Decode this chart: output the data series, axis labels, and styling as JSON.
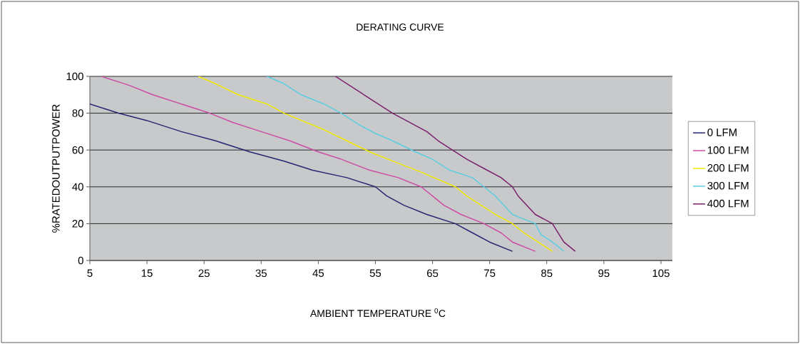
{
  "chart_data": {
    "type": "line",
    "title": "DERATING CURVE",
    "xlabel": "AMBIENT TEMPERATURE $^{0}$C",
    "ylabel": "%RATEDOUTPUTPOWER",
    "xlim": [
      5,
      107
    ],
    "xticks": [
      5,
      15,
      25,
      35,
      45,
      55,
      65,
      75,
      85,
      95,
      105
    ],
    "ylim": [
      0,
      100
    ],
    "yticks": [
      0,
      20,
      40,
      60,
      80,
      100
    ],
    "grid": "y",
    "legend": "right",
    "marker": "none",
    "line_style": "solid",
    "series": [
      {
        "name": "0 LFM",
        "color": "#262673",
        "x": [
          5,
          10,
          15,
          21,
          27,
          33,
          39,
          44,
          50,
          55,
          57,
          60,
          64,
          69,
          72,
          75,
          79
        ],
        "values": [
          85,
          80,
          76,
          70,
          65,
          59,
          54,
          49,
          45,
          40,
          35,
          30,
          25,
          20,
          15,
          10,
          5
        ]
      },
      {
        "name": "100 LFM",
        "color": "#cc4ea4",
        "x": [
          7,
          12,
          16,
          21,
          26,
          30,
          35,
          40,
          45,
          49,
          54,
          59,
          63,
          65,
          67,
          70,
          74,
          77,
          79,
          83
        ],
        "values": [
          100,
          95,
          90,
          85,
          80,
          75,
          70,
          65,
          59,
          55,
          49,
          45,
          40,
          35,
          30,
          25,
          20,
          15,
          10,
          5
        ]
      },
      {
        "name": "200 LFM",
        "color": "#f2ea00",
        "x": [
          24,
          27,
          31,
          36,
          39,
          46,
          50,
          54,
          58,
          63,
          69,
          71,
          74,
          76,
          79,
          81,
          83,
          86
        ],
        "values": [
          100,
          96,
          90,
          85,
          80,
          71,
          65,
          59,
          54,
          48,
          40,
          35,
          29,
          25,
          20,
          15,
          11,
          5
        ]
      },
      {
        "name": "300 LFM",
        "color": "#5bcde0",
        "x": [
          36,
          39,
          42,
          46,
          49,
          52,
          55,
          58,
          62,
          65,
          68,
          72,
          74,
          76,
          79,
          83,
          84,
          86,
          88
        ],
        "values": [
          100,
          96,
          90,
          85,
          80,
          74,
          69,
          65,
          59,
          55,
          49,
          45,
          40,
          35,
          25,
          20,
          14,
          10,
          5
        ]
      },
      {
        "name": "400 LFM",
        "color": "#7a1f6f",
        "x": [
          48,
          53,
          58,
          64,
          66,
          69,
          71,
          74,
          77,
          79,
          80,
          83,
          86,
          87,
          88,
          90
        ],
        "values": [
          100,
          90,
          80,
          70,
          65,
          59,
          55,
          50,
          45,
          40,
          35,
          25,
          20,
          15,
          10,
          5
        ]
      }
    ]
  }
}
